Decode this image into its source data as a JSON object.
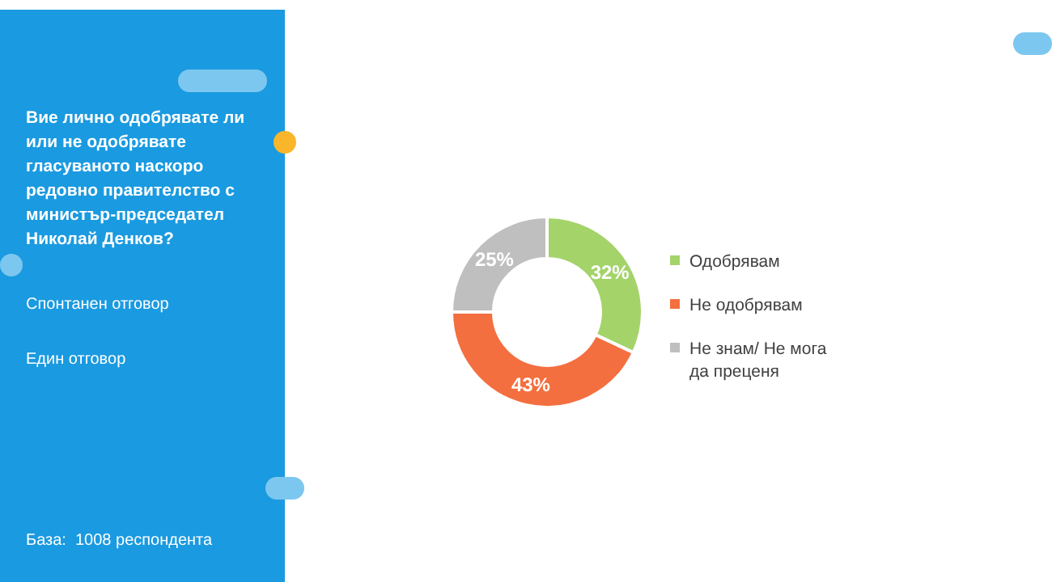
{
  "chart_data": {
    "type": "donut",
    "title": "Вие лично одобрявате ли или не одобрявате гласуваното наскоро редовно правителство с министър-председател Николай Денков?",
    "categories": [
      "Одобрявам",
      "Не одобрявам",
      "Не знам/ Не мога да преценя"
    ],
    "values": [
      32,
      43,
      25
    ],
    "value_labels": [
      "32%",
      "43%",
      "25%"
    ],
    "colors": [
      "#a4d36a",
      "#f36f3f",
      "#bfbfbf"
    ],
    "legend": "right",
    "annotations": [
      "Спонтанен отговор",
      "Един отговор",
      "База:  1008 респондента"
    ]
  }
}
